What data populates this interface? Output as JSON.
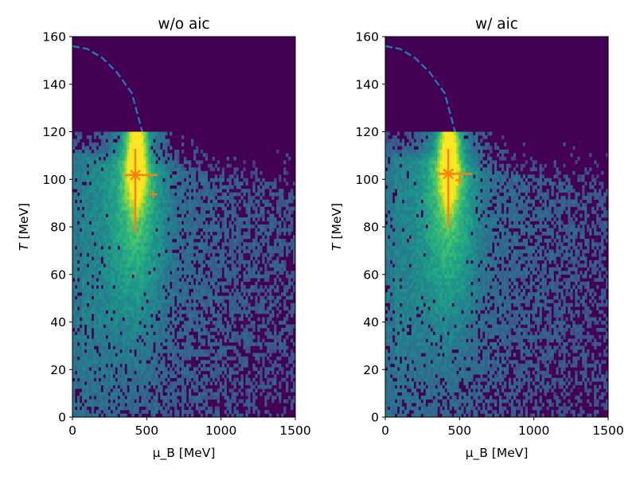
{
  "chart_data": [
    {
      "type": "heatmap",
      "title": "w/o aic",
      "xlabel": "μ_B [MeV]",
      "ylabel": "T [MeV]",
      "xlim": [
        0,
        1500
      ],
      "ylim": [
        0,
        160
      ],
      "xticks": [
        "0",
        "500",
        "1000",
        "1500"
      ],
      "yticks": [
        "0",
        "20",
        "40",
        "60",
        "80",
        "100",
        "120",
        "140",
        "160"
      ],
      "colormap": "viridis",
      "histogram_extent": {
        "T_max": 120,
        "density_peak": {
          "mu_B": 430,
          "T": 110
        }
      },
      "crossover_curve": {
        "style": "dashed",
        "color": "#1f77b4",
        "mu_B": [
          0,
          100,
          200,
          300,
          400,
          470
        ],
        "T": [
          156,
          154.8,
          151.1,
          144.9,
          136.2,
          120
        ]
      },
      "estimate": {
        "color": "#ff7f0e",
        "mu_B": 423,
        "T": 101.8,
        "mu_B_range": [
          348,
          573
        ],
        "T_range": [
          77.7,
          112.7
        ]
      },
      "secondary_point": {
        "color": "#ff7f0e",
        "mu_B": 544,
        "T": 93.7
      }
    },
    {
      "type": "heatmap",
      "title": "w/ aic",
      "xlabel": "μ_B [MeV]",
      "ylabel": "T [MeV]",
      "xlim": [
        0,
        1500
      ],
      "ylim": [
        0,
        160
      ],
      "xticks": [
        "0",
        "500",
        "1000",
        "1500"
      ],
      "yticks": [
        "0",
        "20",
        "40",
        "60",
        "80",
        "100",
        "120",
        "140",
        "160"
      ],
      "colormap": "viridis",
      "histogram_extent": {
        "T_max": 120,
        "density_peak": {
          "mu_B": 430,
          "T": 110
        }
      },
      "crossover_curve": {
        "style": "dashed",
        "color": "#1f77b4",
        "mu_B": [
          0,
          100,
          200,
          300,
          400,
          470
        ],
        "T": [
          156,
          154.8,
          151.1,
          144.9,
          136.2,
          120
        ]
      },
      "estimate": {
        "color": "#ff7f0e",
        "mu_B": 424,
        "T": 102.3,
        "mu_B_range": [
          354,
          584
        ],
        "T_range": [
          79.8,
          112.7
        ]
      },
      "secondary_point": {
        "color": "#ff7f0e",
        "mu_B": 498,
        "T": 99.6
      }
    }
  ]
}
